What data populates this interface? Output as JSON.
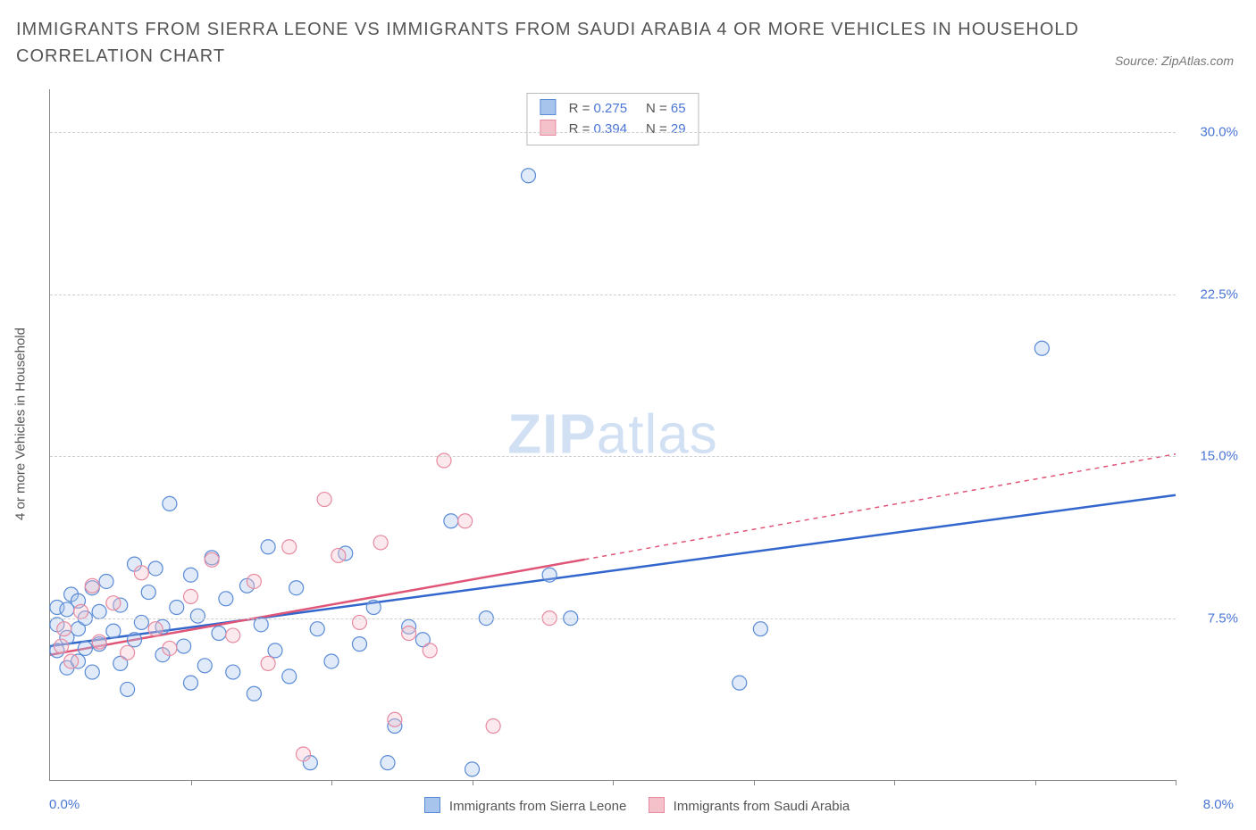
{
  "title": "IMMIGRANTS FROM SIERRA LEONE VS IMMIGRANTS FROM SAUDI ARABIA 4 OR MORE VEHICLES IN HOUSEHOLD CORRELATION CHART",
  "source": "Source: ZipAtlas.com",
  "ylabel": "4 or more Vehicles in Household",
  "watermark_bold": "ZIP",
  "watermark_rest": "atlas",
  "chart": {
    "type": "scatter",
    "background_color": "#ffffff",
    "grid_color": "#d0d0d0",
    "axis_color": "#888888",
    "xlim": [
      0.0,
      8.0
    ],
    "ylim": [
      0.0,
      32.0
    ],
    "x_ticks_minor": [
      1.0,
      2.0,
      3.0,
      4.0,
      5.0,
      6.0,
      7.0,
      8.0
    ],
    "y_gridlines": [
      7.5,
      15.0,
      22.5,
      30.0
    ],
    "y_tick_labels": [
      "7.5%",
      "15.0%",
      "22.5%",
      "30.0%"
    ],
    "x_min_label": "0.0%",
    "x_max_label": "8.0%",
    "marker_radius": 8,
    "marker_stroke_width": 1.2,
    "marker_fill_opacity": 0.35,
    "trend_line_width": 2.5,
    "trend_dash": "5,5"
  },
  "series": [
    {
      "key": "sierra_leone",
      "label": "Immigrants from Sierra Leone",
      "fill": "#a7c4ec",
      "stroke": "#5a8bd6",
      "line_color": "#3366cc",
      "R": "0.275",
      "N": "65",
      "trend": {
        "x1": 0.0,
        "y1": 6.2,
        "x2": 8.0,
        "y2": 13.2,
        "solid_until_x": 8.0
      },
      "points": [
        [
          0.05,
          6.0
        ],
        [
          0.05,
          7.2
        ],
        [
          0.05,
          8.0
        ],
        [
          0.12,
          5.2
        ],
        [
          0.12,
          6.6
        ],
        [
          0.12,
          7.9
        ],
        [
          0.15,
          8.6
        ],
        [
          0.2,
          5.5
        ],
        [
          0.2,
          7.0
        ],
        [
          0.2,
          8.3
        ],
        [
          0.25,
          6.1
        ],
        [
          0.25,
          7.5
        ],
        [
          0.3,
          5.0
        ],
        [
          0.3,
          8.9
        ],
        [
          0.35,
          6.3
        ],
        [
          0.35,
          7.8
        ],
        [
          0.4,
          9.2
        ],
        [
          0.45,
          6.9
        ],
        [
          0.5,
          5.4
        ],
        [
          0.5,
          8.1
        ],
        [
          0.55,
          4.2
        ],
        [
          0.6,
          10.0
        ],
        [
          0.6,
          6.5
        ],
        [
          0.65,
          7.3
        ],
        [
          0.7,
          8.7
        ],
        [
          0.75,
          9.8
        ],
        [
          0.8,
          5.8
        ],
        [
          0.8,
          7.1
        ],
        [
          0.85,
          12.8
        ],
        [
          0.9,
          8.0
        ],
        [
          0.95,
          6.2
        ],
        [
          1.0,
          9.5
        ],
        [
          1.0,
          4.5
        ],
        [
          1.05,
          7.6
        ],
        [
          1.1,
          5.3
        ],
        [
          1.15,
          10.3
        ],
        [
          1.2,
          6.8
        ],
        [
          1.25,
          8.4
        ],
        [
          1.3,
          5.0
        ],
        [
          1.4,
          9.0
        ],
        [
          1.45,
          4.0
        ],
        [
          1.5,
          7.2
        ],
        [
          1.55,
          10.8
        ],
        [
          1.6,
          6.0
        ],
        [
          1.7,
          4.8
        ],
        [
          1.75,
          8.9
        ],
        [
          1.85,
          0.8
        ],
        [
          1.9,
          7.0
        ],
        [
          2.0,
          5.5
        ],
        [
          2.1,
          10.5
        ],
        [
          2.2,
          6.3
        ],
        [
          2.3,
          8.0
        ],
        [
          2.4,
          0.8
        ],
        [
          2.45,
          2.5
        ],
        [
          2.55,
          7.1
        ],
        [
          2.65,
          6.5
        ],
        [
          2.85,
          12.0
        ],
        [
          3.0,
          0.5
        ],
        [
          3.1,
          7.5
        ],
        [
          3.4,
          28.0
        ],
        [
          3.55,
          9.5
        ],
        [
          3.7,
          7.5
        ],
        [
          4.9,
          4.5
        ],
        [
          5.05,
          7.0
        ],
        [
          7.05,
          20.0
        ]
      ]
    },
    {
      "key": "saudi_arabia",
      "label": "Immigrants from Saudi Arabia",
      "fill": "#f4c1ca",
      "stroke": "#e78aa0",
      "line_color": "#e05577",
      "R": "0.394",
      "N": "29",
      "trend": {
        "x1": 0.0,
        "y1": 5.8,
        "x2": 8.0,
        "y2": 15.1,
        "solid_until_x": 3.8
      },
      "points": [
        [
          0.08,
          6.2
        ],
        [
          0.1,
          7.0
        ],
        [
          0.15,
          5.5
        ],
        [
          0.22,
          7.8
        ],
        [
          0.3,
          9.0
        ],
        [
          0.35,
          6.4
        ],
        [
          0.45,
          8.2
        ],
        [
          0.55,
          5.9
        ],
        [
          0.65,
          9.6
        ],
        [
          0.75,
          7.0
        ],
        [
          0.85,
          6.1
        ],
        [
          1.0,
          8.5
        ],
        [
          1.15,
          10.2
        ],
        [
          1.3,
          6.7
        ],
        [
          1.45,
          9.2
        ],
        [
          1.55,
          5.4
        ],
        [
          1.7,
          10.8
        ],
        [
          1.8,
          1.2
        ],
        [
          1.95,
          13.0
        ],
        [
          2.05,
          10.4
        ],
        [
          2.2,
          7.3
        ],
        [
          2.35,
          11.0
        ],
        [
          2.45,
          2.8
        ],
        [
          2.55,
          6.8
        ],
        [
          2.7,
          6.0
        ],
        [
          2.8,
          14.8
        ],
        [
          2.95,
          12.0
        ],
        [
          3.15,
          2.5
        ],
        [
          3.55,
          7.5
        ]
      ]
    }
  ],
  "legend_labels": {
    "R_prefix": "R = ",
    "N_prefix": "N = "
  }
}
